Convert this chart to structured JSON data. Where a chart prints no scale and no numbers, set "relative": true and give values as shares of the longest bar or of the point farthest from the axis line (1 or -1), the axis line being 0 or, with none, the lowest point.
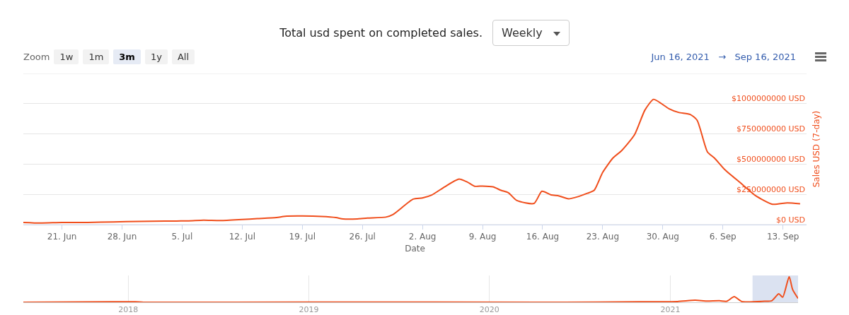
{
  "chart_data": [
    {
      "type": "line",
      "title": "Total usd spent on completed sales.",
      "xlabel": "Date",
      "ylabel": "Sales USD (7-day)",
      "color": "#f04e1c",
      "grid": "y",
      "annotations": [
        "Weekly",
        "Zoom",
        "1w",
        "1m",
        "3m",
        "1y",
        "All",
        "Jun 16, 2021",
        "→",
        "Sep 16, 2021"
      ],
      "xlim": [
        "2021-06-16T12:00",
        "2021-09-15T18:00"
      ],
      "xticks": [
        {
          "value": "2021-06-21",
          "label": "21. Jun"
        },
        {
          "value": "2021-06-28",
          "label": "28. Jun"
        },
        {
          "value": "2021-07-05",
          "label": "5. Jul"
        },
        {
          "value": "2021-07-12",
          "label": "12. Jul"
        },
        {
          "value": "2021-07-19",
          "label": "19. Jul"
        },
        {
          "value": "2021-07-26",
          "label": "26. Jul"
        },
        {
          "value": "2021-08-02",
          "label": "2. Aug"
        },
        {
          "value": "2021-08-09",
          "label": "9. Aug"
        },
        {
          "value": "2021-08-16",
          "label": "16. Aug"
        },
        {
          "value": "2021-08-23",
          "label": "23. Aug"
        },
        {
          "value": "2021-08-30",
          "label": "30. Aug"
        },
        {
          "value": "2021-09-06",
          "label": "6. Sep"
        },
        {
          "value": "2021-09-13",
          "label": "13. Sep"
        }
      ],
      "ylim": [
        0,
        1250000000
      ],
      "yticks": [
        {
          "value": 0,
          "label": "$0 USD"
        },
        {
          "value": 250000000,
          "label": "$250000000 USD"
        },
        {
          "value": 500000000,
          "label": "$500000000 USD"
        },
        {
          "value": 750000000,
          "label": "$750000000 USD"
        },
        {
          "value": 1000000000,
          "label": "$1000000000 USD"
        },
        {
          "value": 1250000000,
          "label": null
        }
      ],
      "x": [
        "2021-06-16T12:00",
        "2021-06-18T12:00",
        "2021-06-21",
        "2021-06-24",
        "2021-06-27",
        "2021-06-30",
        "2021-07-03",
        "2021-07-05T18:00",
        "2021-07-07T12:00",
        "2021-07-09T12:00",
        "2021-07-12",
        "2021-07-13T18:00",
        "2021-07-16",
        "2021-07-17",
        "2021-07-19",
        "2021-07-21T06:00",
        "2021-07-22T22:00",
        "2021-07-23T18:00",
        "2021-07-25T10:00",
        "2021-07-26T14:00",
        "2021-07-28T18:00",
        "2021-07-29T14:00",
        "2021-07-31T22:00",
        "2021-08-02",
        "2021-08-03T02:00",
        "2021-08-04T14:00",
        "2021-08-06T05:00",
        "2021-08-07T05:00",
        "2021-08-08T02:00",
        "2021-08-09",
        "2021-08-10T05:00",
        "2021-08-11T04:00",
        "2021-08-12",
        "2021-08-13",
        "2021-08-15",
        "2021-08-15T22:00",
        "2021-08-17",
        "2021-08-17T22:00",
        "2021-08-19",
        "2021-08-20T05:00",
        "2021-08-21T05:00",
        "2021-08-22",
        "2021-08-23",
        "2021-08-24T05:00",
        "2021-08-25T05:00",
        "2021-08-26T17:00",
        "2021-08-27T22:00",
        "2021-08-28T22:00",
        "2021-08-29T17:00",
        "2021-08-30T17:00",
        "2021-08-31T20:00",
        "2021-09-02T05:00",
        "2021-09-03",
        "2021-09-04T05:00",
        "2021-09-05",
        "2021-09-06T05:00",
        "2021-09-08T05:00",
        "2021-09-09T19:00",
        "2021-09-11T19:00",
        "2021-09-13T12:00",
        "2021-09-15"
      ],
      "values": [
        18000000,
        13000000,
        18000000,
        18000000,
        22000000,
        27000000,
        29000000,
        31000000,
        36000000,
        33000000,
        42000000,
        49000000,
        58000000,
        69000000,
        71000000,
        67000000,
        58000000,
        47000000,
        47000000,
        54000000,
        62000000,
        84000000,
        211000000,
        221000000,
        245000000,
        312000000,
        376000000,
        353000000,
        317000000,
        319000000,
        312000000,
        283000000,
        264000000,
        199000000,
        175000000,
        276000000,
        245000000,
        237000000,
        213000000,
        233000000,
        259000000,
        283000000,
        432000000,
        552000000,
        612000000,
        743000000,
        947000000,
        1036000000,
        1007000000,
        959000000,
        928000000,
        911000000,
        863000000,
        600000000,
        552000000,
        456000000,
        336000000,
        240000000,
        168000000,
        180000000,
        173000000
      ]
    },
    {
      "type": "line",
      "relative": true,
      "color": "#f04e1c",
      "grid": "x",
      "tick_labels": "x",
      "xlim": [
        "2017-06-03",
        "2021-09-16"
      ],
      "xticks": [
        {
          "value": "2018-01-01",
          "label": "2018"
        },
        {
          "value": "2019-01-01",
          "label": "2019"
        },
        {
          "value": "2020-01-01",
          "label": "2020"
        },
        {
          "value": "2021-01-01",
          "label": "2021"
        }
      ],
      "bands": [
        {
          "axis": "x",
          "from": "2021-06-16",
          "to": "2021-09-16",
          "color": "#ccd6eb"
        }
      ],
      "x": [
        "2017-06-03",
        "2017-12-01",
        "2018-01-15",
        "2018-02-01",
        "2019-01-01",
        "2020-06-01",
        "2020-11-01",
        "2021-01-15",
        "2021-02-20",
        "2021-03-15",
        "2021-04-10",
        "2021-04-25",
        "2021-05-10",
        "2021-05-25",
        "2021-07-10",
        "2021-07-25",
        "2021-08-08",
        "2021-08-16",
        "2021-08-29",
        "2021-09-05",
        "2021-09-16"
      ],
      "values": [
        0,
        0.02,
        0.02,
        0,
        0.01,
        0,
        0.02,
        0.03,
        0.08,
        0.05,
        0.06,
        0.04,
        0.22,
        0.03,
        0.04,
        0.06,
        0.33,
        0.2,
        1,
        0.5,
        0.15
      ]
    }
  ]
}
